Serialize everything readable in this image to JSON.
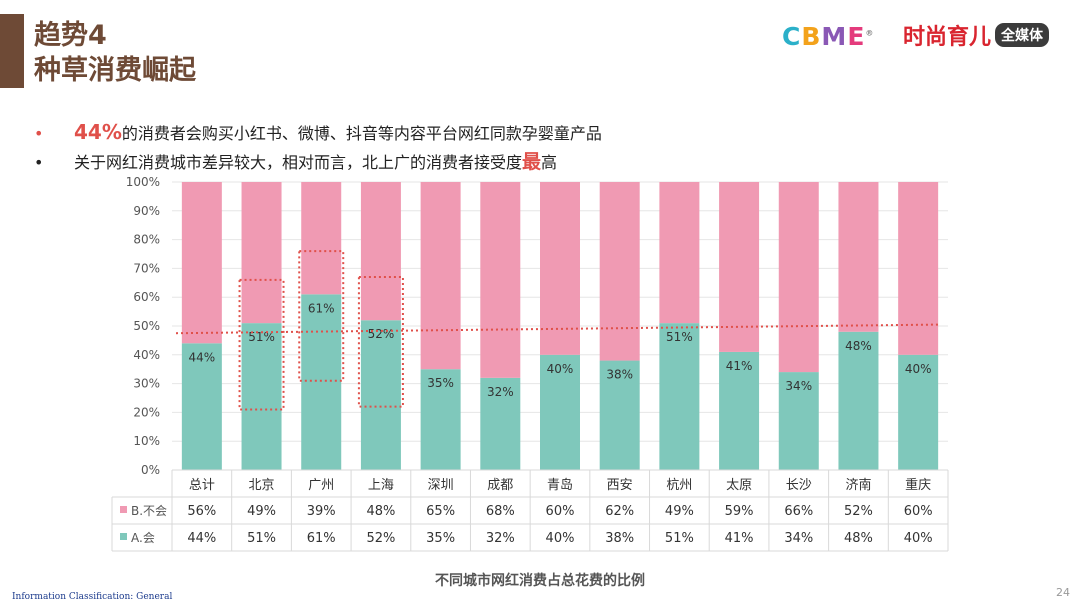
{
  "header": {
    "title_line1": "趋势4",
    "title_line2": "种草消费崛起",
    "logo_cbme": [
      "C",
      "B",
      "M",
      "E"
    ],
    "logo_cbme_mark": "®",
    "logo_shishang": "时尚育儿",
    "logo_media": "全媒体"
  },
  "bullets": [
    {
      "highlight": "44%",
      "text": "的消费者会购买小红书、微博、抖音等内容平台网红同款孕婴童产品"
    },
    {
      "text_before": "关于网红消费城市差异较大，相对而言，北上广的消费者接受度",
      "highlight": "最",
      "text_after": "高"
    }
  ],
  "colors": {
    "series_b": "#f09ab3",
    "series_a": "#7fc8bb",
    "accent": "#6e4a36",
    "dotted": "#e0504a"
  },
  "chart_data": {
    "type": "bar",
    "stacked": true,
    "categories": [
      "总计",
      "北京",
      "广州",
      "上海",
      "深圳",
      "成都",
      "青岛",
      "西安",
      "杭州",
      "太原",
      "长沙",
      "济南",
      "重庆"
    ],
    "series": [
      {
        "name": "A.会",
        "values": [
          44,
          51,
          61,
          52,
          35,
          32,
          40,
          38,
          51,
          41,
          34,
          48,
          40
        ],
        "color": "#7fc8bb"
      },
      {
        "name": "B.不会",
        "values": [
          56,
          49,
          39,
          48,
          65,
          68,
          60,
          62,
          49,
          59,
          66,
          52,
          60
        ],
        "color": "#f09ab3"
      }
    ],
    "ylim": [
      0,
      100
    ],
    "yticks": [
      "0%",
      "10%",
      "20%",
      "30%",
      "40%",
      "50%",
      "60%",
      "70%",
      "80%",
      "90%",
      "100%"
    ],
    "data_labels": [
      "44%",
      "51%",
      "61%",
      "52%",
      "35%",
      "32%",
      "40%",
      "38%",
      "51%",
      "41%",
      "34%",
      "48%",
      "40%"
    ],
    "table_rows": [
      {
        "legend": "B.不会",
        "cells": [
          "56%",
          "49%",
          "39%",
          "48%",
          "65%",
          "68%",
          "60%",
          "62%",
          "49%",
          "59%",
          "66%",
          "52%",
          "60%"
        ]
      },
      {
        "legend": "A.会",
        "cells": [
          "44%",
          "51%",
          "61%",
          "52%",
          "35%",
          "32%",
          "40%",
          "38%",
          "51%",
          "41%",
          "34%",
          "48%",
          "40%"
        ]
      }
    ],
    "highlighted_categories": [
      "北京",
      "广州",
      "上海"
    ],
    "trendline": {
      "start": 47.5,
      "end": 50.5
    },
    "title": "不同城市网红消费占总花费的比例"
  },
  "footer": {
    "classification": "Information Classification: General",
    "page_number": "24"
  }
}
